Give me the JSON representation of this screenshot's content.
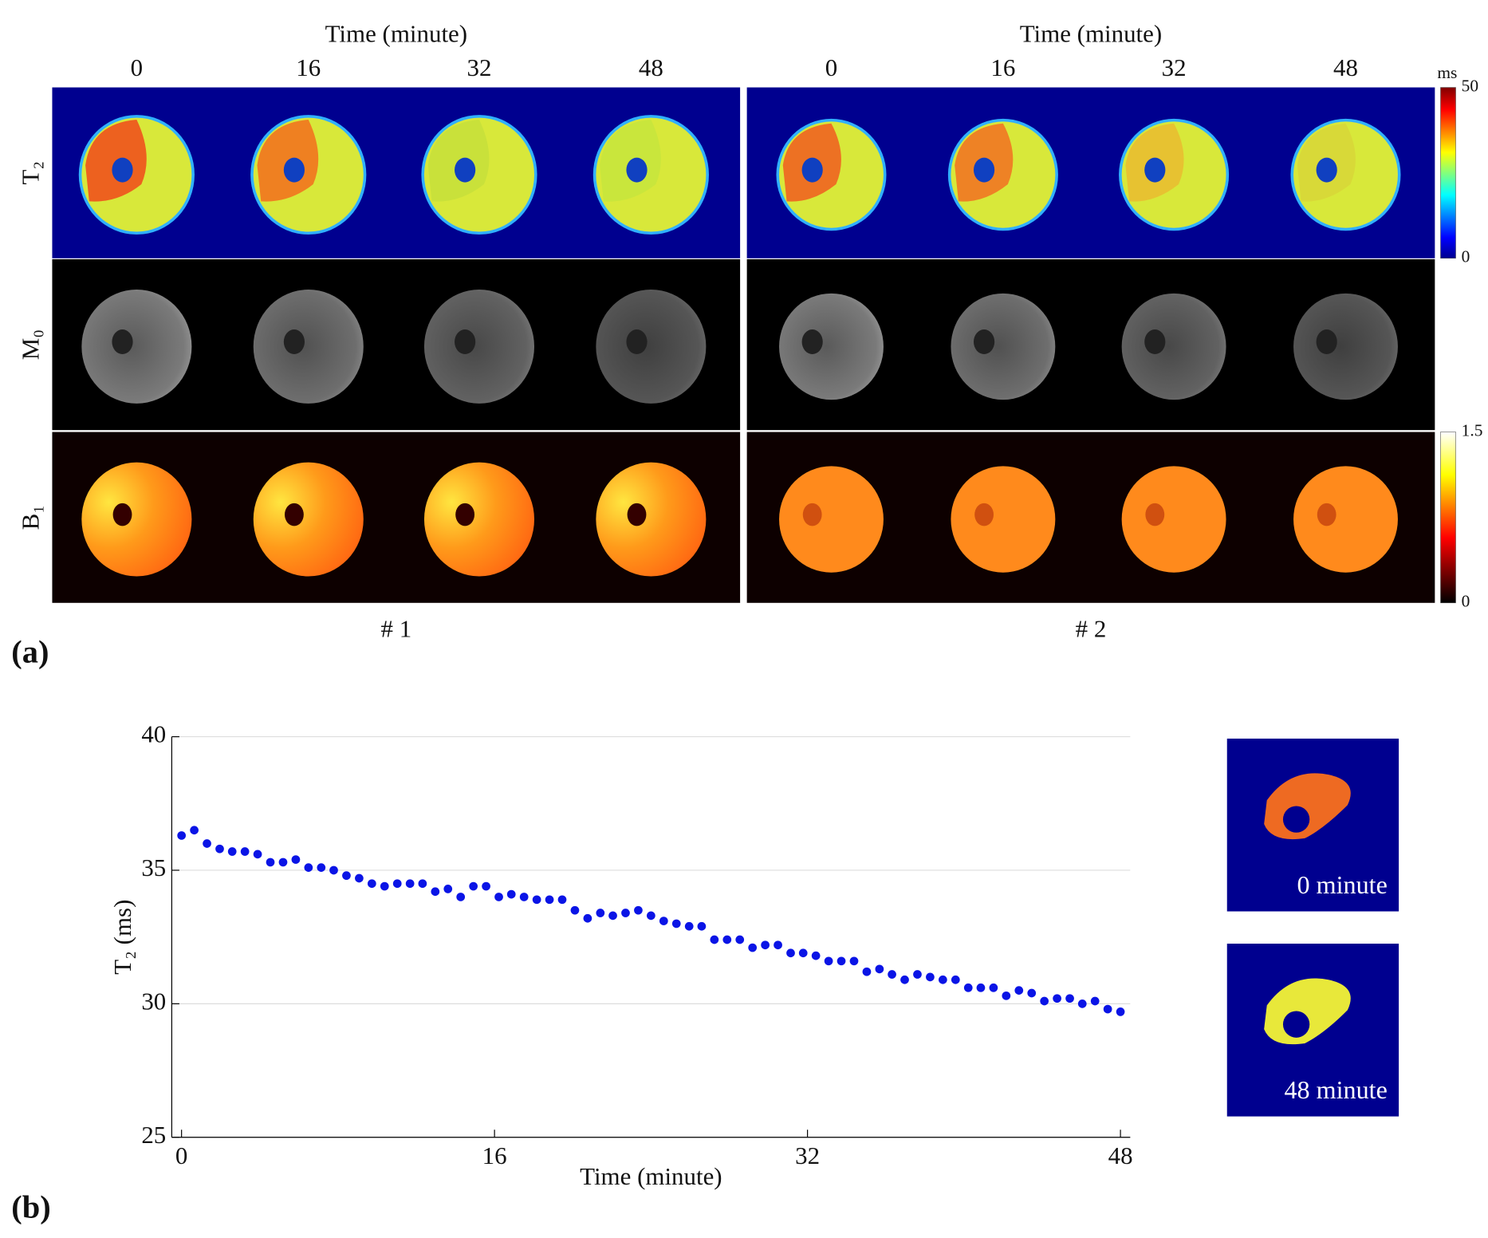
{
  "figure": {
    "panel_a": {
      "label": "(a)",
      "time_axis_label": "Time (minute)",
      "time_ticks": [
        "0",
        "16",
        "32",
        "48"
      ],
      "row_labels": [
        "T₂",
        "M₀",
        "B₁"
      ],
      "subject_labels": [
        "# 1",
        "# 2"
      ],
      "colorbars": [
        {
          "unit": "ms",
          "max": "50",
          "min": "0"
        },
        {
          "max": "1.5",
          "min": "0"
        }
      ]
    },
    "panel_b": {
      "label": "(b)",
      "insets": [
        "0 minute",
        "48 minute"
      ]
    }
  },
  "chart_data": {
    "type": "scatter",
    "xlabel": "Time (minute)",
    "ylabel": "T₂ (ms)",
    "color": "#0a14e6",
    "x": [
      0,
      0.65,
      1.3,
      1.95,
      2.59,
      3.24,
      3.89,
      4.54,
      5.19,
      5.84,
      6.49,
      7.14,
      7.78,
      8.43,
      9.08,
      9.73,
      10.38,
      11.03,
      11.68,
      12.32,
      12.97,
      13.62,
      14.27,
      14.92,
      15.57,
      16.22,
      16.86,
      17.51,
      18.16,
      18.81,
      19.46,
      20.11,
      20.76,
      21.41,
      22.05,
      22.7,
      23.35,
      24.0,
      24.65,
      25.3,
      25.95,
      26.59,
      27.24,
      27.89,
      28.54,
      29.19,
      29.84,
      30.49,
      31.14,
      31.78,
      32.43,
      33.08,
      33.73,
      34.38,
      35.03,
      35.68,
      36.32,
      36.97,
      37.62,
      38.27,
      38.92,
      39.57,
      40.22,
      40.86,
      41.51,
      42.16,
      42.81,
      43.46,
      44.11,
      44.76,
      45.41,
      46.05,
      46.7,
      47.35,
      48.0
    ],
    "values": [
      36.3,
      36.5,
      36.0,
      35.8,
      35.7,
      35.7,
      35.6,
      35.3,
      35.3,
      35.4,
      35.1,
      35.1,
      35.0,
      34.8,
      34.7,
      34.5,
      34.4,
      34.5,
      34.5,
      34.5,
      34.2,
      34.3,
      34.0,
      34.4,
      34.4,
      34.0,
      34.1,
      34.0,
      33.9,
      33.9,
      33.9,
      33.5,
      33.2,
      33.4,
      33.3,
      33.4,
      33.5,
      33.3,
      33.1,
      33.0,
      32.9,
      32.9,
      32.4,
      32.4,
      32.4,
      32.1,
      32.2,
      32.2,
      31.9,
      31.9,
      31.8,
      31.6,
      31.6,
      31.6,
      31.2,
      31.3,
      31.1,
      30.9,
      31.1,
      31.0,
      30.9,
      30.9,
      30.6,
      30.6,
      30.6,
      30.3,
      30.5,
      30.4,
      30.1,
      30.2,
      30.2,
      30.0,
      30.1,
      29.8,
      29.7
    ],
    "xlim": [
      -0.5,
      48.5
    ],
    "xticks": [
      0,
      16,
      32,
      48
    ],
    "ylim": [
      25,
      40
    ],
    "yticks": [
      25,
      30,
      35,
      40
    ],
    "grid": true
  }
}
